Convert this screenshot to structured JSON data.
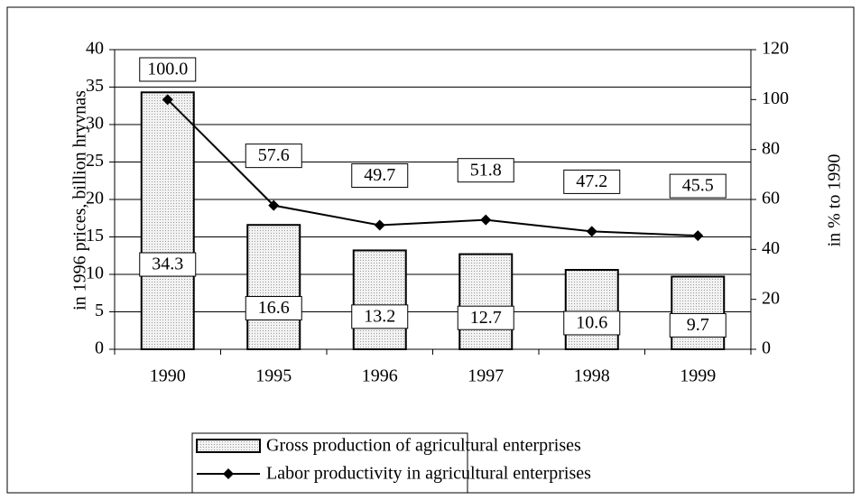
{
  "chart_data": {
    "type": "bar_line",
    "categories": [
      "1990",
      "1995",
      "1996",
      "1997",
      "1998",
      "1999"
    ],
    "ylabel": "in 1996 prices, billion  hryvnas",
    "y2label": "in % to 1990",
    "ylim": [
      0,
      40
    ],
    "yticks": [
      0,
      5,
      10,
      15,
      20,
      25,
      30,
      35,
      40
    ],
    "y2lim": [
      0,
      120
    ],
    "y2ticks": [
      0,
      20,
      40,
      60,
      80,
      100,
      120
    ],
    "grid": true,
    "series": [
      {
        "name": "Gross production of agricultural enterprises",
        "kind": "bar",
        "color": "#e4e4e4",
        "values": [
          34.3,
          16.6,
          13.2,
          12.7,
          10.6,
          9.7
        ]
      },
      {
        "name": "Labor productivity in agricultural enterprises",
        "kind": "line",
        "axis": "y2",
        "color": "#000000",
        "values": [
          100,
          57.6,
          49.7,
          51.8,
          47.2,
          45.5
        ],
        "value_labels": [
          "100.0",
          "57.6",
          "49.7",
          "51.8",
          "47.2",
          "45.5"
        ]
      }
    ]
  }
}
